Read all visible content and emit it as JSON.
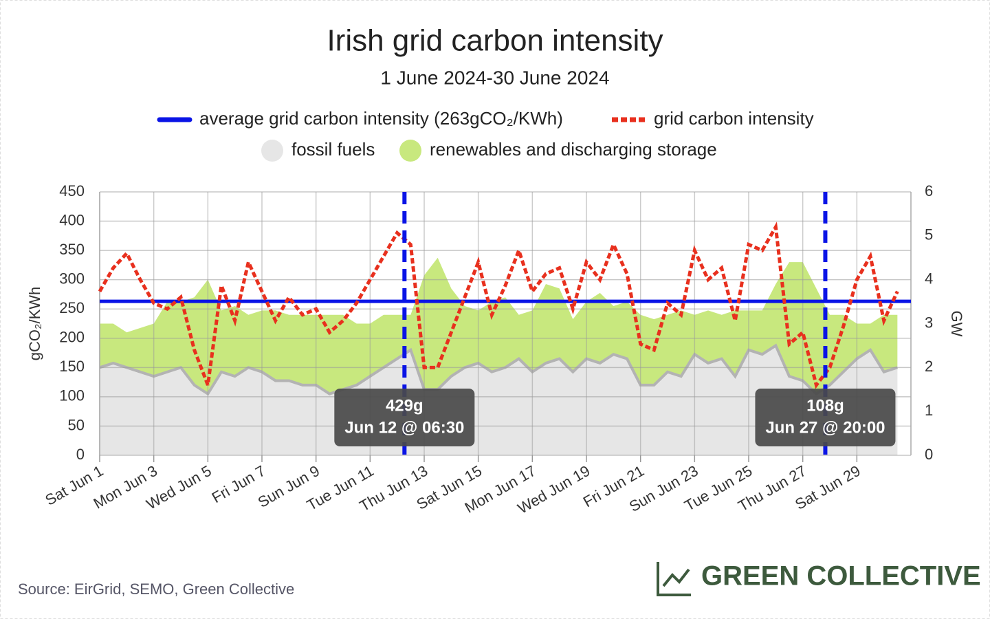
{
  "chart_data": {
    "type": "line",
    "title": "Irish grid carbon intensity",
    "subtitle": "1 June 2024-30 June 2024",
    "y_label": "gCO₂/KWh",
    "y2_label": "GW",
    "source": "Source: EirGrid, SEMO, Green Collective",
    "brand": "GREEN COLLECTIVE",
    "x": [
      "Jun 1 00:00",
      "Jun 1 12:00",
      "Jun 2 00:00",
      "Jun 2 12:00",
      "Jun 3 00:00",
      "Jun 3 12:00",
      "Jun 4 00:00",
      "Jun 4 12:00",
      "Jun 5 00:00",
      "Jun 5 12:00",
      "Jun 6 00:00",
      "Jun 6 12:00",
      "Jun 7 00:00",
      "Jun 7 12:00",
      "Jun 8 00:00",
      "Jun 8 12:00",
      "Jun 9 00:00",
      "Jun 9 12:00",
      "Jun 10 00:00",
      "Jun 10 12:00",
      "Jun 11 00:00",
      "Jun 11 12:00",
      "Jun 12 00:00",
      "Jun 12 12:00",
      "Jun 13 00:00",
      "Jun 13 12:00",
      "Jun 14 00:00",
      "Jun 14 12:00",
      "Jun 15 00:00",
      "Jun 15 12:00",
      "Jun 16 00:00",
      "Jun 16 12:00",
      "Jun 17 00:00",
      "Jun 17 12:00",
      "Jun 18 00:00",
      "Jun 18 12:00",
      "Jun 19 00:00",
      "Jun 19 12:00",
      "Jun 20 00:00",
      "Jun 20 12:00",
      "Jun 21 00:00",
      "Jun 21 12:00",
      "Jun 22 00:00",
      "Jun 22 12:00",
      "Jun 23 00:00",
      "Jun 23 12:00",
      "Jun 24 00:00",
      "Jun 24 12:00",
      "Jun 25 00:00",
      "Jun 25 12:00",
      "Jun 26 00:00",
      "Jun 26 12:00",
      "Jun 27 00:00",
      "Jun 27 12:00",
      "Jun 28 00:00",
      "Jun 28 12:00",
      "Jun 29 00:00",
      "Jun 29 12:00",
      "Jun 30 00:00",
      "Jun 30 12:00"
    ],
    "series": [
      {
        "name": "fossil fuels",
        "color": "#e6e6e6",
        "edge_color": "#b3b3b3",
        "axis": "y2",
        "values": [
          2.0,
          2.1,
          2.0,
          1.9,
          1.8,
          1.9,
          2.0,
          1.6,
          1.4,
          1.9,
          1.8,
          2.0,
          1.9,
          1.7,
          1.7,
          1.6,
          1.6,
          1.4,
          1.5,
          1.6,
          1.8,
          2.0,
          2.2,
          2.4,
          1.5,
          1.5,
          1.8,
          2.0,
          2.1,
          1.9,
          2.0,
          2.2,
          1.9,
          2.1,
          2.2,
          1.9,
          2.2,
          2.1,
          2.3,
          2.2,
          1.6,
          1.6,
          1.9,
          1.8,
          2.3,
          2.1,
          2.2,
          1.8,
          2.4,
          2.3,
          2.5,
          1.8,
          1.7,
          1.4,
          1.6,
          1.9,
          2.2,
          2.4,
          1.9,
          2.0
        ]
      },
      {
        "name": "renewables and discharging storage",
        "color": "#c8e87e",
        "axis": "y2",
        "values": [
          1.0,
          0.9,
          0.8,
          1.0,
          1.2,
          1.6,
          1.5,
          2.0,
          2.6,
          1.4,
          1.6,
          1.2,
          1.4,
          1.6,
          1.5,
          1.6,
          1.6,
          1.8,
          1.7,
          1.4,
          1.2,
          1.2,
          1.0,
          0.8,
          2.6,
          3.0,
          2.0,
          1.4,
          1.2,
          1.6,
          1.6,
          1.0,
          1.4,
          1.8,
          1.6,
          1.2,
          1.3,
          1.6,
          1.1,
          1.3,
          1.6,
          1.5,
          1.3,
          1.5,
          0.9,
          1.2,
          1.0,
          1.5,
          0.9,
          1.0,
          1.4,
          2.6,
          2.7,
          2.4,
          1.6,
          1.3,
          0.8,
          0.6,
          1.3,
          1.2
        ]
      },
      {
        "name": "grid carbon intensity",
        "color": "#e8301e",
        "axis": "y",
        "values": [
          280,
          320,
          345,
          300,
          260,
          250,
          270,
          180,
          120,
          290,
          230,
          330,
          280,
          230,
          270,
          240,
          250,
          210,
          230,
          260,
          300,
          340,
          380,
          360,
          150,
          150,
          210,
          270,
          330,
          240,
          290,
          350,
          280,
          310,
          320,
          250,
          330,
          300,
          360,
          310,
          190,
          180,
          260,
          240,
          350,
          300,
          320,
          230,
          360,
          350,
          390,
          190,
          210,
          120,
          150,
          220,
          300,
          340,
          230,
          280
        ]
      }
    ],
    "reference_line": {
      "name": "average grid carbon intensity (263gCO₂/KWh)",
      "value": 263,
      "color": "#0a14e6"
    },
    "annotations": [
      {
        "x": "Jun 12 06:30",
        "value": 429,
        "label": "429g",
        "date_label": "Jun 12 @ 06:30"
      },
      {
        "x": "Jun 27 20:00",
        "value": 108,
        "label": "108g",
        "date_label": "Jun 27 @ 20:00"
      }
    ],
    "xlim": [
      "Jun 1 00:00",
      "Jul 1 00:00"
    ],
    "xticks": [
      {
        "value": "Jun 1 00:00",
        "label": "Sat Jun 1"
      },
      {
        "value": "Jun 3 00:00",
        "label": "Mon Jun 3"
      },
      {
        "value": "Jun 5 00:00",
        "label": "Wed Jun 5"
      },
      {
        "value": "Jun 7 00:00",
        "label": "Fri Jun 7"
      },
      {
        "value": "Jun 9 00:00",
        "label": "Sun Jun 9"
      },
      {
        "value": "Jun 11 00:00",
        "label": "Tue Jun 11"
      },
      {
        "value": "Jun 13 00:00",
        "label": "Thu Jun 13"
      },
      {
        "value": "Jun 15 00:00",
        "label": "Sat Jun 15"
      },
      {
        "value": "Jun 17 00:00",
        "label": "Mon Jun 17"
      },
      {
        "value": "Jun 19 00:00",
        "label": "Wed Jun 19"
      },
      {
        "value": "Jun 21 00:00",
        "label": "Fri Jun 21"
      },
      {
        "value": "Jun 23 00:00",
        "label": "Sun Jun 23"
      },
      {
        "value": "Jun 25 00:00",
        "label": "Tue Jun 25"
      },
      {
        "value": "Jun 27 00:00",
        "label": "Thu Jun 27"
      },
      {
        "value": "Jun 29 00:00",
        "label": "Sat Jun 29"
      }
    ],
    "ylim": [
      0,
      450
    ],
    "yticks": [
      0,
      50,
      100,
      150,
      200,
      250,
      300,
      350,
      400,
      450
    ],
    "y2lim": [
      0,
      6
    ],
    "y2ticks": [
      0,
      1,
      2,
      3,
      4,
      5,
      6
    ],
    "grid": true
  }
}
